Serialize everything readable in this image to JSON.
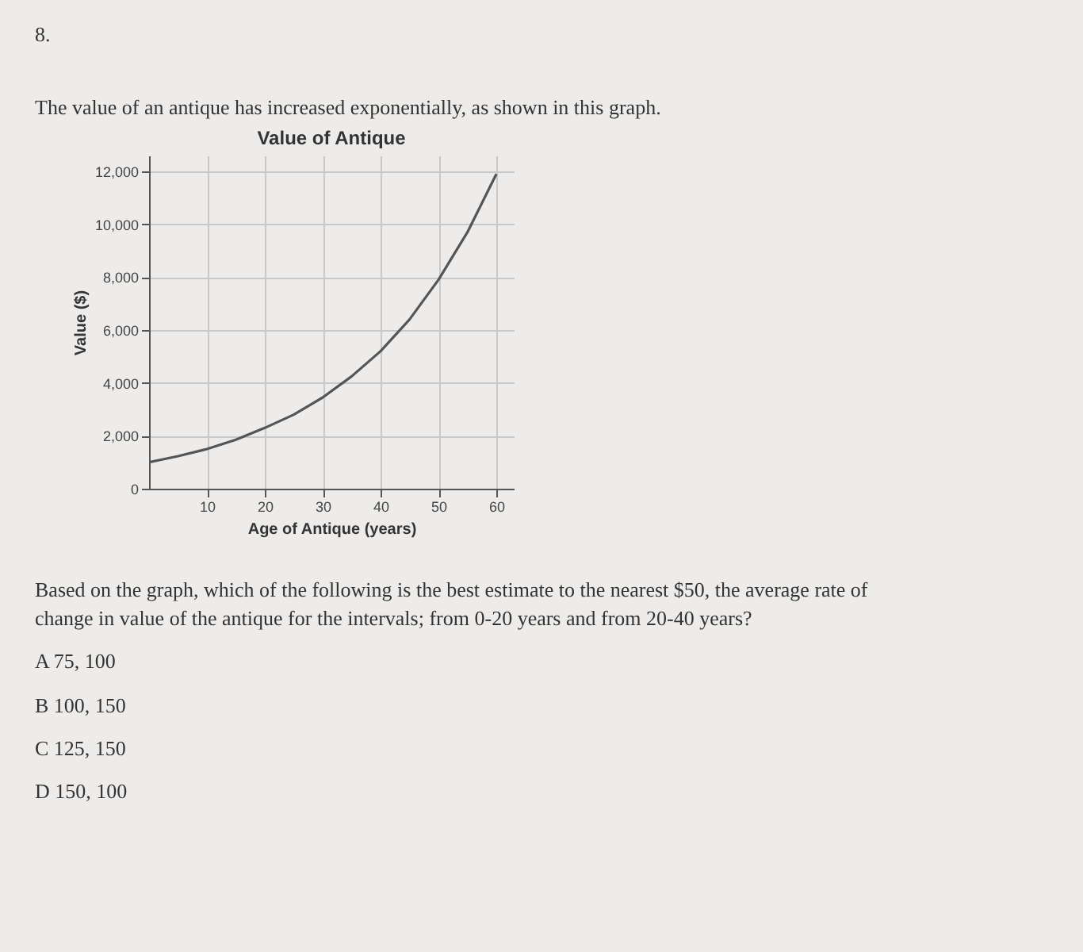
{
  "chart_data": {
    "type": "line",
    "title": "Value of Antique",
    "xlabel": "Age of Antique (years)",
    "ylabel": "Value ($)",
    "annotations": [
      "8.",
      "The value of an antique has increased exponentially, as shown in this graph.",
      "Based on the graph, which of the following is the best estimate to the nearest $50, the average rate of change in value of the antique for the intervals; from 0-20 years and from 20-40 years?",
      "A  75, 100",
      "B  100, 150",
      "C  125, 150",
      "D  150, 100"
    ],
    "x": [
      0,
      5,
      10,
      15,
      20,
      25,
      30,
      35,
      40,
      45,
      50,
      55,
      60
    ],
    "series": [
      {
        "color": "#555555",
        "values": [
          1000,
          1230,
          1500,
          1850,
          2300,
          2800,
          3450,
          4250,
          5200,
          6400,
          7900,
          9700,
          11900
        ]
      }
    ],
    "xlim": [
      0,
      63
    ],
    "ylim": [
      0,
      12600
    ],
    "xticks": [
      10,
      20,
      30,
      40,
      50,
      60
    ],
    "yticks": [
      0,
      {
        "value": 2000,
        "label": "2,000"
      },
      {
        "value": 4000,
        "label": "4,000"
      },
      {
        "value": 6000,
        "label": "6,000"
      },
      {
        "value": 8000,
        "label": "8,000"
      },
      {
        "value": 10000,
        "label": "10,000"
      },
      {
        "value": 12000,
        "label": "12,000"
      }
    ],
    "grid": true,
    "marker": "none",
    "line_style": "solid"
  }
}
